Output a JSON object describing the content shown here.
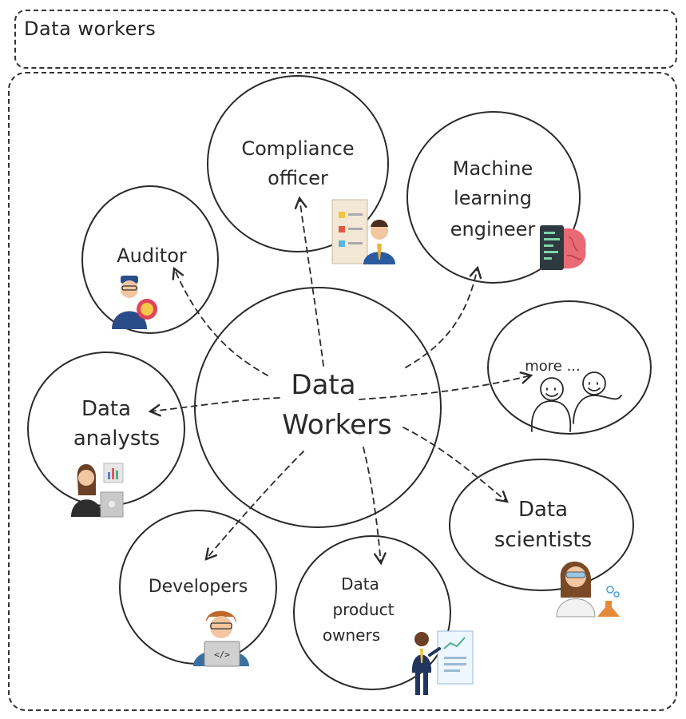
{
  "title": "Data workers",
  "center": {
    "line1": "Data",
    "line2": "Workers"
  },
  "roles": {
    "compliance": {
      "line1": "Compliance",
      "line2": "officer",
      "icon": "compliance-checklist-icon"
    },
    "ml_engineer": {
      "line1": "Machine",
      "line2": "learning",
      "line3": "engineer",
      "icon": "ml-brain-terminal-icon"
    },
    "auditor": {
      "line1": "Auditor",
      "icon": "auditor-person-icon"
    },
    "more": {
      "line1": "more ...",
      "icon": "people-sketch-icon"
    },
    "analysts": {
      "line1": "Data",
      "line2": "analysts",
      "icon": "analyst-person-icon"
    },
    "scientists": {
      "line1": "Data",
      "line2": "scientists",
      "icon": "scientist-person-icon"
    },
    "developers": {
      "line1": "Developers",
      "icon": "developer-laptop-icon"
    },
    "product_owners": {
      "line1": "Data",
      "line2": "product",
      "line3": "owners",
      "icon": "product-owner-icon"
    }
  }
}
